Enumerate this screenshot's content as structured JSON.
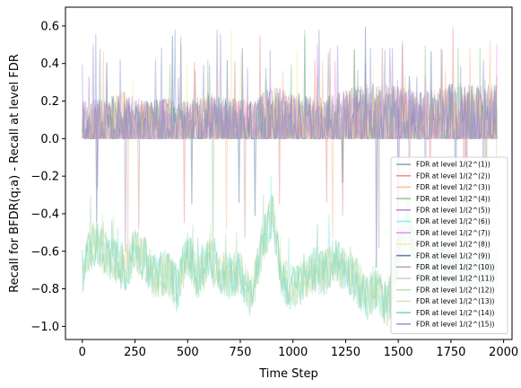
{
  "chart_data": {
    "type": "line",
    "xlabel": "Time Step",
    "ylabel": "Recall for BFDR(q;a) - Recall at level FDR",
    "xlim": [
      -80,
      2040
    ],
    "ylim": [
      -1.07,
      0.7
    ],
    "x_ticks": [
      0,
      250,
      500,
      750,
      1000,
      1250,
      1500,
      1750,
      2000
    ],
    "x_tick_labels": [
      "0",
      "250",
      "500",
      "750",
      "1000",
      "1250",
      "1500",
      "1750",
      "2000"
    ],
    "y_ticks": [
      -1.0,
      -0.8,
      -0.6,
      -0.4,
      -0.2,
      0.0,
      0.2,
      0.4,
      0.6
    ],
    "y_tick_labels": [
      "−1.0",
      "−0.8",
      "−0.6",
      "−0.4",
      "−0.2",
      "0.0",
      "0.2",
      "0.4",
      "0.6"
    ],
    "grid": false,
    "legend_position": "lower-right",
    "x_range": [
      0,
      1970
    ],
    "series": [
      {
        "name": "FDR at level 1/(2^(1))",
        "color": "#8ea5c8",
        "kind": "positive"
      },
      {
        "name": "FDR at level 1/(2^(2))",
        "color": "#f08f8f",
        "kind": "positive"
      },
      {
        "name": "FDR at level 1/(2^(3))",
        "color": "#f5c49a",
        "kind": "positive"
      },
      {
        "name": "FDR at level 1/(2^(4))",
        "color": "#93c993",
        "kind": "positive"
      },
      {
        "name": "FDR at level 1/(2^(5))",
        "color": "#b48fd4",
        "kind": "positive"
      },
      {
        "name": "FDR at level 1/(2^(6))",
        "color": "#8ff0f0",
        "kind": "negative"
      },
      {
        "name": "FDR at level 1/(2^(7))",
        "color": "#f08ff0",
        "kind": "positive"
      },
      {
        "name": "FDR at level 1/(2^(8))",
        "color": "#f5f0a0",
        "kind": "positive"
      },
      {
        "name": "FDR at level 1/(2^(9))",
        "color": "#5f7fa8",
        "kind": "positive"
      },
      {
        "name": "FDR at level 1/(2^(10))",
        "color": "#c8a0a0",
        "kind": "positive"
      },
      {
        "name": "FDR at level 1/(2^(11))",
        "color": "#c0dcc0",
        "kind": "negative"
      },
      {
        "name": "FDR at level 1/(2^(12))",
        "color": "#b8e0b8",
        "kind": "negative"
      },
      {
        "name": "FDR at level 1/(2^(13))",
        "color": "#d8e8b0",
        "kind": "negative"
      },
      {
        "name": "FDR at level 1/(2^(14))",
        "color": "#7fd8c0",
        "kind": "negative"
      },
      {
        "name": "FDR at level 1/(2^(15))",
        "color": "#9d9ad8",
        "kind": "positive"
      }
    ],
    "negative_envelope": {
      "x": [
        0,
        50,
        100,
        150,
        200,
        250,
        300,
        350,
        400,
        450,
        500,
        550,
        600,
        650,
        700,
        750,
        800,
        850,
        900,
        950,
        1000,
        1050,
        1100,
        1150,
        1200,
        1250,
        1300,
        1350,
        1400,
        1450,
        1500,
        1550,
        1600,
        1650,
        1700,
        1750,
        1800,
        1850,
        1900,
        1950
      ],
      "y": [
        -0.7,
        -0.55,
        -0.6,
        -0.65,
        -0.7,
        -0.6,
        -0.65,
        -0.75,
        -0.7,
        -0.8,
        -0.6,
        -0.75,
        -0.65,
        -0.7,
        -0.75,
        -0.7,
        -0.85,
        -0.6,
        -0.4,
        -0.75,
        -0.8,
        -0.75,
        -0.7,
        -0.72,
        -0.65,
        -0.7,
        -0.75,
        -0.85,
        -0.8,
        -0.9,
        -0.6,
        -0.45,
        -0.7,
        -0.75,
        -0.65,
        -0.7,
        -0.75,
        -0.72,
        -0.7,
        -0.7
      ]
    },
    "positive_envelope": {
      "x": [
        0,
        100,
        200,
        300,
        400,
        500,
        600,
        700,
        800,
        900,
        1000,
        1100,
        1200,
        1300,
        1400,
        1500,
        1600,
        1700,
        1800,
        1900,
        1970
      ],
      "y": [
        0.2,
        0.22,
        0.25,
        0.2,
        0.22,
        0.2,
        0.25,
        0.22,
        0.2,
        0.28,
        0.25,
        0.22,
        0.24,
        0.28,
        0.3,
        0.28,
        0.25,
        0.28,
        0.3,
        0.28,
        0.3
      ]
    }
  }
}
